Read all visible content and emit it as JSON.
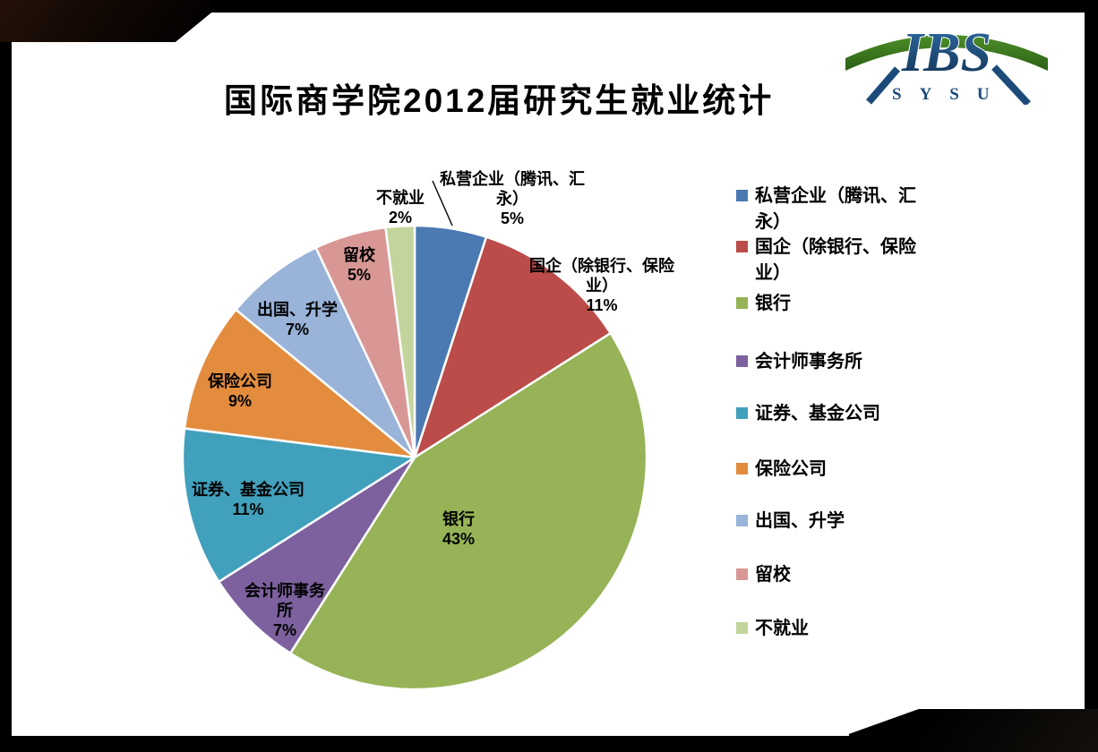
{
  "slide": {
    "title": "国际商学院2012届研究生就业统计"
  },
  "logo": {
    "text": "IBS",
    "subtext": "SYSU",
    "blue": "#1c4b7a",
    "green": "#3e7d1e"
  },
  "chart_data": {
    "type": "pie",
    "title": "国际商学院2012届研究生就业统计",
    "categories": [
      "私营企业（腾讯、汇永）",
      "国企（除银行、保险业）",
      "银行",
      "会计师事务所",
      "证券、基金公司",
      "保险公司",
      "出国、升学",
      "留校",
      "不就业"
    ],
    "values": [
      5,
      11,
      43,
      7,
      11,
      9,
      7,
      5,
      2
    ],
    "colors": [
      "#4B79B2",
      "#BB4C49",
      "#96B357",
      "#7C619E",
      "#41A0BC",
      "#E38C3E",
      "#99B3D9",
      "#D89795",
      "#C3D59C"
    ],
    "legend_position": "right",
    "start_angle_deg": 0,
    "direction": "clockwise",
    "data_labels": [
      {
        "lines": [
          "私营企业（腾讯、汇",
          "永）"
        ],
        "pct": "5%",
        "placement": "outside",
        "leader": true
      },
      {
        "lines": [
          "国企（除银行、保险",
          "业）"
        ],
        "pct": "11%",
        "placement": "outside"
      },
      {
        "lines": [
          "银行"
        ],
        "pct": "43%",
        "placement": "inside"
      },
      {
        "lines": [
          "会计师事务",
          "所"
        ],
        "pct": "7%",
        "placement": "outside"
      },
      {
        "lines": [
          "证券、基金公司"
        ],
        "pct": "11%",
        "placement": "outside"
      },
      {
        "lines": [
          "保险公司"
        ],
        "pct": "9%",
        "placement": "outside"
      },
      {
        "lines": [
          "出国、升学"
        ],
        "pct": "7%",
        "placement": "outside"
      },
      {
        "lines": [
          "留校"
        ],
        "pct": "5%",
        "placement": "outside"
      },
      {
        "lines": [
          "不就业"
        ],
        "pct": "2%",
        "placement": "outside"
      }
    ],
    "legend_labels": [
      [
        "私营企业（腾讯、汇",
        "永）"
      ],
      [
        "国企（除银行、保险",
        "业）"
      ],
      [
        "银行"
      ],
      [
        "会计师事务所"
      ],
      [
        "证券、基金公司"
      ],
      [
        "保险公司"
      ],
      [
        "出国、升学"
      ],
      [
        "留校"
      ],
      [
        "不就业"
      ]
    ]
  }
}
